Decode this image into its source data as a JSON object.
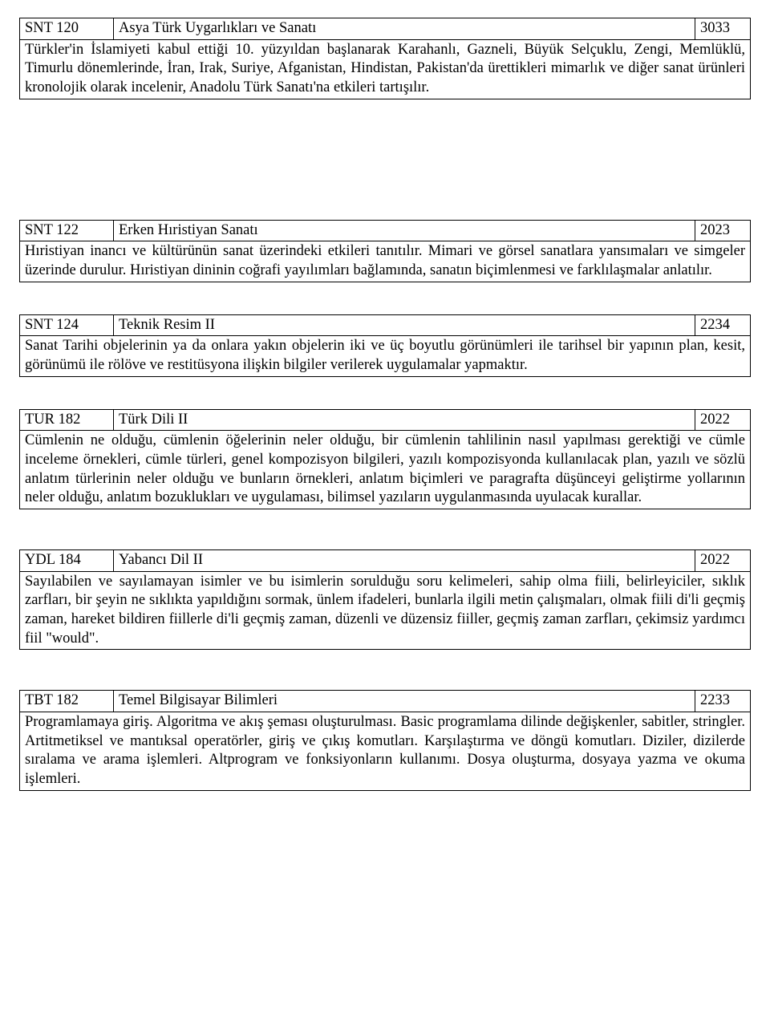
{
  "courses": [
    {
      "code": "SNT 120",
      "title": "Asya Türk Uygarlıkları ve Sanatı",
      "num": "3033",
      "desc": "Türkler'in İslamiyeti kabul ettiği 10. yüzyıldan başlanarak Karahanlı, Gazneli, Büyük Selçuklu, Zengi, Memlüklü, Timurlu dönemlerinde, İran, Irak, Suriye, Afganistan, Hindistan, Pakistan'da ürettikleri mimarlık ve diğer sanat ürünleri kronolojik olarak incelenir, Anadolu Türk Sanatı'na etkileri tartışılır.",
      "spacer_after": "spacer-lg"
    },
    {
      "code": "SNT 122",
      "title": "Erken Hıristiyan Sanatı",
      "num": "2023",
      "desc": "Hıristiyan inancı ve kültürünün sanat üzerindeki etkileri tanıtılır. Mimari ve görsel sanatlara yansımaları ve simgeler üzerinde durulur. Hıristiyan dininin coğrafi yayılımları bağlamında, sanatın biçimlenmesi ve farklılaşmalar anlatılır.",
      "spacer_after": "spacer-sm"
    },
    {
      "code": "SNT 124",
      "title": "Teknik Resim II",
      "num": "2234",
      "desc": "Sanat Tarihi objelerinin ya da onlara yakın objelerin iki ve üç boyutlu görünümleri ile tarihsel bir yapının plan, kesit, görünümü ile rölöve ve restitüsyona ilişkin bilgiler verilerek uygulamalar yapmaktır.",
      "spacer_after": "spacer-sm"
    },
    {
      "code": "TUR 182",
      "title": "Türk Dili II",
      "num": "2022",
      "desc": "Cümlenin ne olduğu, cümlenin öğelerinin neler olduğu, bir cümlenin tahlilinin nasıl yapılması gerektiği ve cümle inceleme örnekleri, cümle türleri, genel kompozisyon bilgileri, yazılı kompozisyonda kullanılacak plan, yazılı ve sözlü anlatım türlerinin neler olduğu ve bunların örnekleri, anlatım biçimleri ve paragrafta düşünceyi geliştirme yollarının neler olduğu, anlatım bozuklukları ve uygulaması, bilimsel yazıların uygulanmasında uyulacak kurallar.",
      "spacer_after": "spacer-md"
    },
    {
      "code": "YDL 184",
      "title": "Yabancı Dil II",
      "num": "2022",
      "desc": "Sayılabilen ve sayılamayan isimler ve bu isimlerin sorulduğu soru kelimeleri, sahip olma fiili, belirleyiciler, sıklık zarfları, bir şeyin ne sıklıkta yapıldığını sormak, ünlem ifadeleri, bunlarla ilgili metin çalışmaları, olmak fiili di'li geçmiş zaman, hareket bildiren fiillerle di'li geçmiş zaman, düzenli ve düzensiz fiiller, geçmiş zaman zarfları, çekimsiz yardımcı fiil \"would\".",
      "spacer_after": "spacer-md"
    },
    {
      "code": "TBT 182",
      "title": "Temel Bilgisayar Bilimleri",
      "num": "2233",
      "desc": "Programlamaya giriş. Algoritma ve akış şeması oluşturulması. Basic programlama dilinde değişkenler, sabitler, stringler. Artitmetiksel ve mantıksal operatörler, giriş ve çıkış komutları. Karşılaştırma ve döngü komutları. Diziler, dizilerde sıralama ve arama işlemleri. Altprogram ve fonksiyonların kullanımı. Dosya oluşturma, dosyaya yazma ve okuma işlemleri.",
      "spacer_after": ""
    }
  ]
}
